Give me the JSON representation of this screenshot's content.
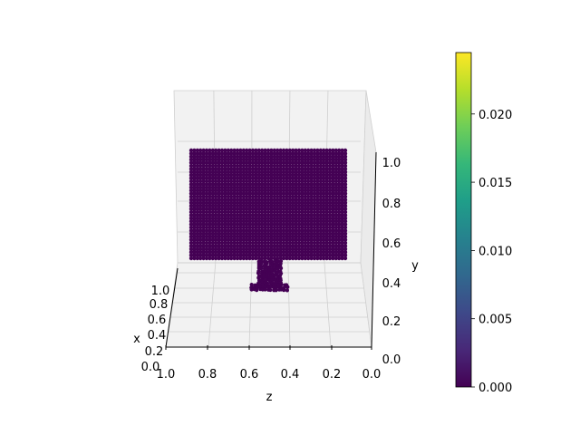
{
  "chart_data": {
    "type": "scatter",
    "projection": "3d",
    "title": "",
    "axes": {
      "x": {
        "label": "x",
        "ticks": [
          "0.0",
          "0.2",
          "0.4",
          "0.6",
          "0.8",
          "1.0"
        ]
      },
      "y": {
        "label": "y",
        "ticks": [
          "0.0",
          "0.2",
          "0.4",
          "0.6",
          "0.8",
          "1.0"
        ]
      },
      "z": {
        "label": "z",
        "ticks": [
          "1.0",
          "0.8",
          "0.6",
          "0.4",
          "0.2",
          "0.0"
        ]
      }
    },
    "grid": true,
    "shapes": [
      {
        "name": "monitor-screen",
        "kind": "point-cloud-box",
        "z_range": [
          0.1,
          0.95
        ],
        "y_range": [
          0.55,
          1.0
        ],
        "value": 0.0
      },
      {
        "name": "monitor-stand",
        "kind": "point-cloud-column",
        "z": 0.5,
        "y_range": [
          0.3,
          0.55
        ],
        "value": 0.0
      }
    ],
    "point_color": "#440154",
    "colorbar": {
      "colormap": "viridis",
      "range": [
        0.0,
        0.0245
      ],
      "ticks": [
        "0.000",
        "0.005",
        "0.010",
        "0.015",
        "0.020"
      ],
      "tick_values": [
        0.0,
        0.005,
        0.01,
        0.015,
        0.02
      ],
      "colors": [
        "#440154",
        "#482878",
        "#3e4989",
        "#31688e",
        "#26828e",
        "#1f9e89",
        "#35b779",
        "#6ece58",
        "#b5de2b",
        "#fde725"
      ]
    }
  }
}
